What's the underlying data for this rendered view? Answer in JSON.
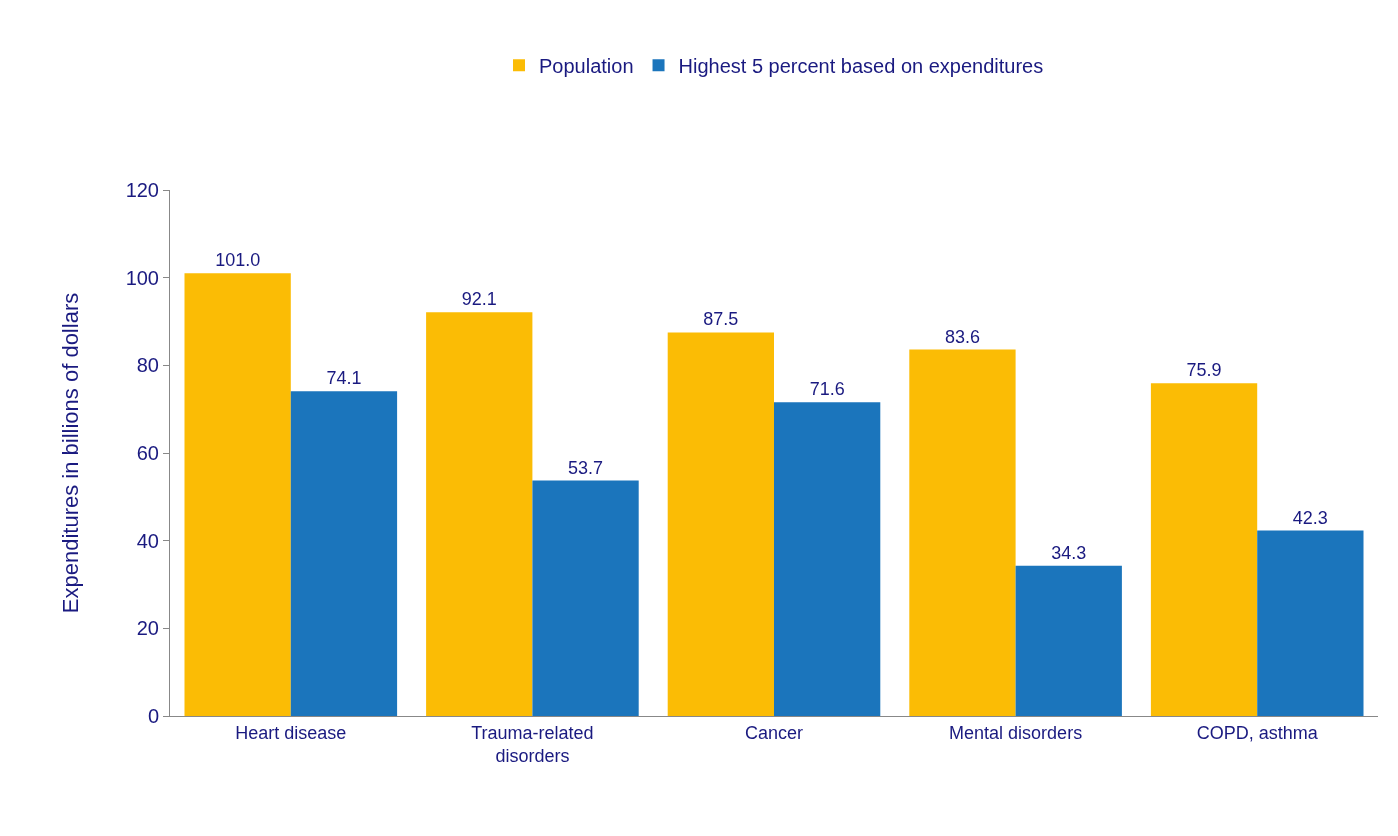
{
  "chart_data": {
    "type": "bar",
    "ylabel": "Expenditures in billions of dollars",
    "categories": [
      "Heart disease",
      "Trauma-related disorders",
      "Cancer",
      "Mental disorders",
      "COPD, asthma"
    ],
    "series": [
      {
        "name": "Population",
        "color": "#fbbc05",
        "values": [
          101.0,
          92.1,
          87.5,
          83.6,
          75.9
        ],
        "value_labels": [
          "101.0",
          "92.1",
          "87.5",
          "83.6",
          "75.9"
        ]
      },
      {
        "name": "Highest 5 percent based on expenditures",
        "color": "#1b75bc",
        "values": [
          74.1,
          53.7,
          71.6,
          34.3,
          42.3
        ],
        "value_labels": [
          "74.1",
          "53.7",
          "71.6",
          "34.3",
          "42.3"
        ]
      }
    ],
    "ylim": [
      0,
      120
    ],
    "yticks": [
      0,
      20,
      40,
      60,
      80,
      100,
      120
    ],
    "grid": false,
    "legend": "top"
  }
}
